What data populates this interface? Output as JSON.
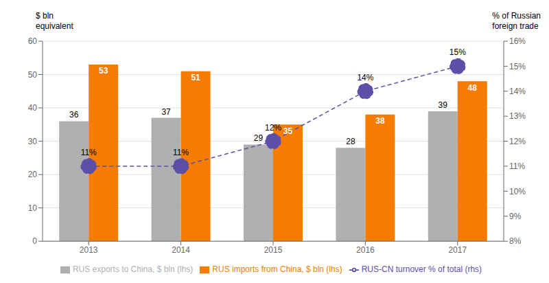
{
  "chart_data": {
    "type": "bar",
    "categories": [
      "2013",
      "2014",
      "2015",
      "2016",
      "2017"
    ],
    "series": [
      {
        "name": "RUS exports to China, $ bln (lhs)",
        "type": "bar",
        "color": "#b0b0b0",
        "values": [
          36,
          37,
          29,
          28,
          39
        ]
      },
      {
        "name": "RUS imports from China, $ bln (lhs)",
        "type": "bar",
        "color": "#f57c00",
        "values": [
          53,
          51,
          35,
          38,
          48
        ]
      },
      {
        "name": "RUS-CN turnover % of total (rhs)",
        "type": "line",
        "axis": "y2",
        "color": "#5b4fa8",
        "line_style": "dashed",
        "marker": "circle",
        "values": [
          11,
          11,
          12,
          14,
          15
        ],
        "value_labels": [
          "11%",
          "11%",
          "12%",
          "14%",
          "15%"
        ]
      }
    ],
    "ylim": [
      0,
      60
    ],
    "yticks": [
      0,
      10,
      20,
      30,
      40,
      50,
      60
    ],
    "y2lim": [
      8,
      16
    ],
    "y2ticks": [
      {
        "value": 8,
        "label": "8%"
      },
      {
        "value": 9,
        "label": "9%"
      },
      {
        "value": 10,
        "label": "10%"
      },
      {
        "value": 11,
        "label": "11%"
      },
      {
        "value": 12,
        "label": "12%"
      },
      {
        "value": 13,
        "label": "13%"
      },
      {
        "value": 14,
        "label": "14%"
      },
      {
        "value": 15,
        "label": "15%"
      },
      {
        "value": 16,
        "label": "16%"
      }
    ],
    "ylabel": "$ bln\nequivalent",
    "y2label": "% of Russian\nforeign trade",
    "grid": true,
    "data_labels": true,
    "legend": "bottom"
  }
}
